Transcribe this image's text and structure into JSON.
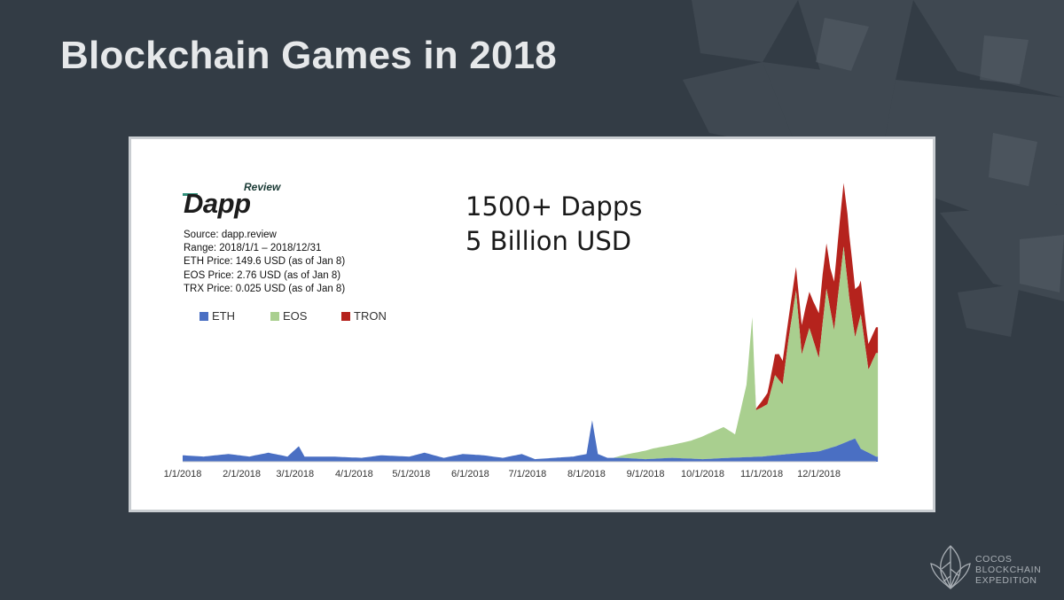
{
  "slide": {
    "title": "Blockchain Games in 2018"
  },
  "panel": {
    "logo": {
      "small": "Review",
      "word": "Dapp"
    },
    "headline": [
      "1500+ Dapps",
      "5 Billion USD"
    ],
    "meta": [
      "Source: dapp.review",
      "Range: 2018/1/1 – 2018/12/31",
      "ETH Price: 149.6 USD (as of Jan 8)",
      "EOS Price: 2.76 USD (as of Jan 8)",
      "TRX Price: 0.025 USD (as of Jan 8)"
    ]
  },
  "brand": {
    "lines": [
      "COCOS",
      "BLOCKCHAIN",
      "EXPEDITION"
    ]
  },
  "chart_data": {
    "type": "area",
    "stacked": true,
    "title": "",
    "xlabel": "",
    "ylabel": "",
    "y_axis_labels_shown": false,
    "grid": false,
    "legend_position": "top-left",
    "x_ticks": [
      "1/1/2018",
      "2/1/2018",
      "3/1/2018",
      "4/1/2018",
      "5/1/2018",
      "6/1/2018",
      "7/1/2018",
      "8/1/2018",
      "9/1/2018",
      "10/1/2018",
      "11/1/2018",
      "12/1/2018"
    ],
    "x_range": [
      "2018-01-01",
      "2018-12-31"
    ],
    "y_range": [
      0,
      100
    ],
    "y_unit": "relative volume (scale not printed)",
    "series": [
      {
        "name": "ETH",
        "color": "#4a6fc3",
        "points": [
          [
            "2018-01-01",
            2.5
          ],
          [
            "2018-01-12",
            2
          ],
          [
            "2018-01-25",
            3
          ],
          [
            "2018-02-05",
            2
          ],
          [
            "2018-02-15",
            3.5
          ],
          [
            "2018-02-25",
            2
          ],
          [
            "2018-03-03",
            6
          ],
          [
            "2018-03-06",
            2
          ],
          [
            "2018-03-20",
            2
          ],
          [
            "2018-04-05",
            1.5
          ],
          [
            "2018-04-15",
            2.5
          ],
          [
            "2018-04-30",
            2
          ],
          [
            "2018-05-08",
            3.5
          ],
          [
            "2018-05-18",
            1.5
          ],
          [
            "2018-05-28",
            3
          ],
          [
            "2018-06-08",
            2.5
          ],
          [
            "2018-06-18",
            1.5
          ],
          [
            "2018-06-28",
            3
          ],
          [
            "2018-07-05",
            1
          ],
          [
            "2018-07-15",
            1.5
          ],
          [
            "2018-07-25",
            2
          ],
          [
            "2018-08-01",
            3
          ],
          [
            "2018-08-04",
            16
          ],
          [
            "2018-08-07",
            3
          ],
          [
            "2018-08-12",
            1.5
          ],
          [
            "2018-08-20",
            1.5
          ],
          [
            "2018-09-01",
            1
          ],
          [
            "2018-09-15",
            1.5
          ],
          [
            "2018-10-01",
            1
          ],
          [
            "2018-10-15",
            1.5
          ],
          [
            "2018-11-01",
            2
          ],
          [
            "2018-11-15",
            3
          ],
          [
            "2018-12-01",
            4
          ],
          [
            "2018-12-10",
            6
          ],
          [
            "2018-12-20",
            9
          ],
          [
            "2018-12-23",
            5
          ],
          [
            "2018-12-31",
            2
          ]
        ]
      },
      {
        "name": "EOS",
        "color": "#a9cf8f",
        "points": [
          [
            "2018-01-01",
            0
          ],
          [
            "2018-08-15",
            0
          ],
          [
            "2018-08-25",
            2
          ],
          [
            "2018-09-05",
            4
          ],
          [
            "2018-09-15",
            5
          ],
          [
            "2018-09-25",
            7
          ],
          [
            "2018-10-05",
            10
          ],
          [
            "2018-10-12",
            12
          ],
          [
            "2018-10-18",
            9
          ],
          [
            "2018-10-24",
            28
          ],
          [
            "2018-10-27",
            54
          ],
          [
            "2018-10-29",
            18
          ],
          [
            "2018-11-04",
            20
          ],
          [
            "2018-11-08",
            31
          ],
          [
            "2018-11-12",
            27
          ],
          [
            "2018-11-15",
            44
          ],
          [
            "2018-11-19",
            63
          ],
          [
            "2018-11-22",
            38
          ],
          [
            "2018-11-26",
            48
          ],
          [
            "2018-12-01",
            36
          ],
          [
            "2018-12-05",
            62
          ],
          [
            "2018-12-09",
            45
          ],
          [
            "2018-12-14",
            76
          ],
          [
            "2018-12-17",
            55
          ],
          [
            "2018-12-20",
            39
          ],
          [
            "2018-12-23",
            52
          ],
          [
            "2018-12-27",
            32
          ],
          [
            "2018-12-31",
            40
          ]
        ]
      },
      {
        "name": "TRON",
        "color": "#b5231d",
        "points": [
          [
            "2018-01-01",
            0
          ],
          [
            "2018-10-28",
            0
          ],
          [
            "2018-11-02",
            3
          ],
          [
            "2018-11-05",
            5
          ],
          [
            "2018-11-10",
            10
          ],
          [
            "2018-11-15",
            8
          ],
          [
            "2018-11-19",
            9
          ],
          [
            "2018-11-24",
            13
          ],
          [
            "2018-11-28",
            15
          ],
          [
            "2018-12-03",
            19
          ],
          [
            "2018-12-07",
            16
          ],
          [
            "2018-12-12",
            23
          ],
          [
            "2018-12-16",
            26
          ],
          [
            "2018-12-19",
            21
          ],
          [
            "2018-12-22",
            14
          ],
          [
            "2018-12-26",
            10
          ],
          [
            "2018-12-31",
            10
          ]
        ]
      }
    ]
  },
  "colors": {
    "background": "#333c45",
    "title": "#e6e8ea",
    "panel_bg": "#ffffff"
  }
}
